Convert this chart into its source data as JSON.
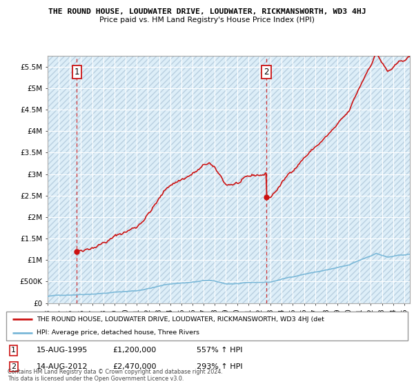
{
  "title": "THE ROUND HOUSE, LOUDWATER DRIVE, LOUDWATER, RICKMANSWORTH, WD3 4HJ",
  "subtitle": "Price paid vs. HM Land Registry's House Price Index (HPI)",
  "hpi_label": "HPI: Average price, detached house, Three Rivers",
  "property_label": "THE ROUND HOUSE, LOUDWATER DRIVE, LOUDWATER, RICKMANSWORTH, WD3 4HJ (det",
  "sale1_date": "15-AUG-1995",
  "sale1_price": 1200000,
  "sale1_pct": "557% ↑ HPI",
  "sale2_date": "14-AUG-2012",
  "sale2_price": 2470000,
  "sale2_pct": "293% ↑ HPI",
  "footnote": "Contains HM Land Registry data © Crown copyright and database right 2024.\nThis data is licensed under the Open Government Licence v3.0.",
  "hpi_color": "#7ab8d8",
  "property_color": "#cc1111",
  "dot_color": "#cc1111",
  "dashed_color": "#cc1111",
  "ylim_min": 0,
  "ylim_max": 5750000,
  "xstart": 1993,
  "xend": 2025.5,
  "sale1_year": 1995.62,
  "sale2_year": 2012.62
}
